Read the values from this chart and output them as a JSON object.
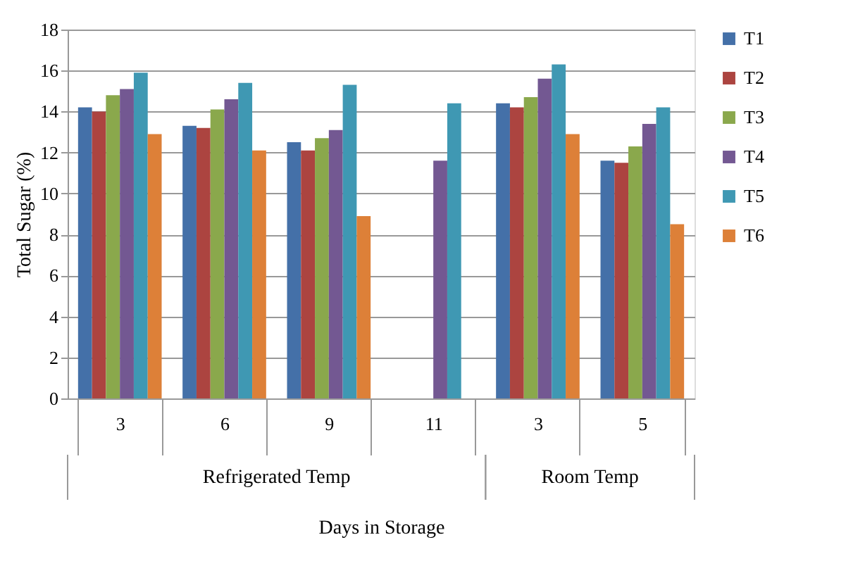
{
  "chart_data": {
    "type": "bar",
    "xlabel": "Days in Storage",
    "ylabel": "Total Sugar (%)",
    "categories": [
      "3",
      "6",
      "9",
      "11",
      "3",
      "5"
    ],
    "annotations": [
      "Refrigerated Temp",
      "Room Temp"
    ],
    "ylim": [
      0,
      18
    ],
    "yticks": [
      0,
      2,
      4,
      6,
      8,
      10,
      12,
      14,
      16,
      18
    ],
    "grid": "y",
    "legend": "right",
    "series": [
      {
        "name": "T1",
        "color": "#4470a8",
        "values": [
          14.2,
          13.3,
          12.5,
          null,
          14.4,
          11.6
        ]
      },
      {
        "name": "T2",
        "color": "#ac4440",
        "values": [
          14.0,
          13.2,
          12.1,
          null,
          14.2,
          11.5
        ]
      },
      {
        "name": "T3",
        "color": "#8aa84c",
        "values": [
          14.8,
          14.1,
          12.7,
          null,
          14.7,
          12.3
        ]
      },
      {
        "name": "T4",
        "color": "#735892",
        "values": [
          15.1,
          14.6,
          13.1,
          11.6,
          15.6,
          13.4
        ]
      },
      {
        "name": "T5",
        "color": "#3f98b3",
        "values": [
          15.9,
          15.4,
          15.3,
          14.4,
          16.3,
          14.2
        ]
      },
      {
        "name": "T6",
        "color": "#dd8038",
        "values": [
          12.9,
          12.1,
          8.9,
          null,
          12.9,
          8.5
        ]
      }
    ]
  }
}
